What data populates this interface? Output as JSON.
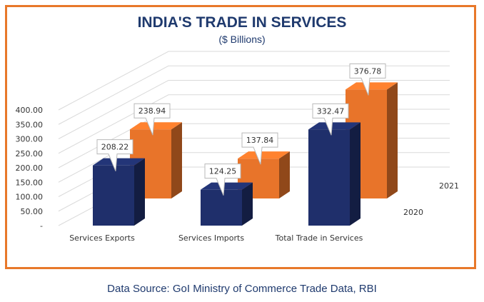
{
  "chart_data": {
    "type": "bar",
    "title": "INDIA'S TRADE IN SERVICES",
    "subtitle": "($ Billions)",
    "categories": [
      "Services Exports",
      "Services Imports",
      "Total Trade in Services"
    ],
    "series": [
      {
        "name": "2020",
        "values": [
          208.22,
          124.25,
          332.47
        ],
        "value_labels": [
          "208.22",
          "124.25",
          "332.47"
        ],
        "color": "#1f2f6b"
      },
      {
        "name": "2021",
        "values": [
          238.94,
          137.84,
          376.78
        ],
        "value_labels": [
          "238.94",
          "137.84",
          "376.78"
        ],
        "color": "#e8742a"
      }
    ],
    "y_ticks": [
      "-",
      "50.00",
      "100.00",
      "150.00",
      "200.00",
      "250.00",
      "300.00",
      "350.00",
      "400.00"
    ],
    "ylim": [
      0,
      400
    ],
    "grid": true,
    "style": "3d"
  },
  "source_note": "Data Source: GoI Ministry of Commerce Trade Data, RBI"
}
